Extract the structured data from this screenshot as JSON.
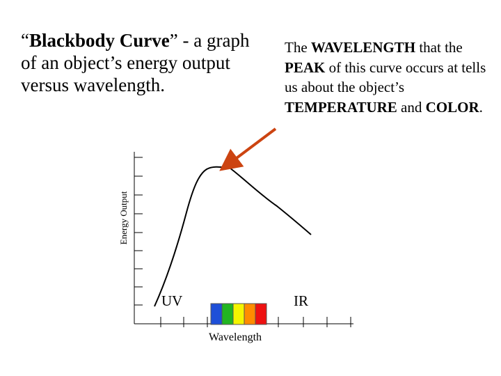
{
  "title": {
    "open_quote": "“",
    "term": "Blackbody Curve",
    "rest": "” - a graph of an object’s energy output versus wavelength."
  },
  "note": {
    "p1": "The ",
    "b1": "WAVELENGTH",
    "p2": " that the ",
    "b2": "PEAK",
    "p3": " of this curve occurs at tells us about the object’s ",
    "b3": "TEMPERATURE",
    "p4": " and ",
    "b4": "COLOR",
    "p5": "."
  },
  "axes": {
    "y_label": "Energy Output",
    "x_label": "Wavelength",
    "uv_label": "UV",
    "ir_label": "IR"
  },
  "spectrum_colors": [
    "#1e4fd8",
    "#22b522",
    "#f5f500",
    "#ff8c00",
    "#ee1111"
  ],
  "colors": {
    "arrow": "#cc4411",
    "curve": "#000000"
  }
}
